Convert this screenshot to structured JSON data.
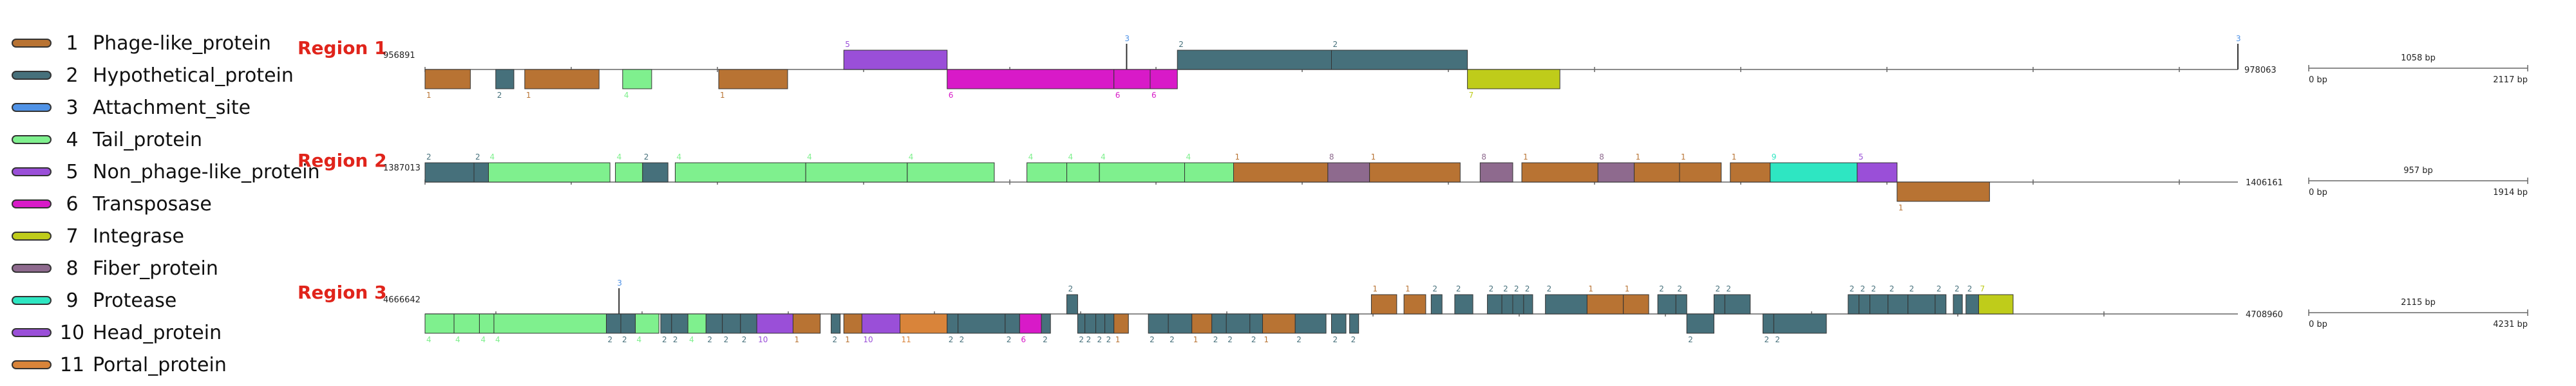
{
  "legend": [
    {
      "num": "1",
      "label": "Phage-like_protein",
      "color": "#B87333"
    },
    {
      "num": "2",
      "label": "Hypothetical_protein",
      "color": "#46707B"
    },
    {
      "num": "3",
      "label": "Attachment_site",
      "color": "#4F92E6"
    },
    {
      "num": "4",
      "label": "Tail_protein",
      "color": "#7FF08E"
    },
    {
      "num": "5",
      "label": "Non_phage-like_protein",
      "color": "#9A4FD8"
    },
    {
      "num": "6",
      "label": "Transposase",
      "color": "#D81AC8"
    },
    {
      "num": "7",
      "label": "Integrase",
      "color": "#BFCC1A"
    },
    {
      "num": "8",
      "label": "Fiber_protein",
      "color": "#8E6A8E"
    },
    {
      "num": "9",
      "label": "Protease",
      "color": "#2EE6C2"
    },
    {
      "num": "10",
      "label": "Head_protein",
      "color": "#9A4FD8"
    },
    {
      "num": "11",
      "label": "Portal_protein",
      "color": "#D9843A"
    }
  ],
  "colors": {
    "1": "#B87333",
    "2": "#46707B",
    "3": "#4F92E6",
    "4": "#7FF08E",
    "5": "#9A4FD8",
    "6": "#D81AC8",
    "7": "#BFCC1A",
    "8": "#8E6A8E",
    "9": "#2EE6C2",
    "10": "#9A4FD8",
    "11": "#D9843A"
  },
  "regions": [
    {
      "name": "Region 1",
      "start": "956891",
      "end": "978063",
      "scale": {
        "length": "1058 bp",
        "left": "0 bp",
        "right": "2117 bp"
      },
      "att_markers": [
        0.387,
        1.0
      ],
      "genes": [
        {
          "s": 0.0,
          "e": 0.025,
          "t": "1",
          "strand": "-"
        },
        {
          "s": 0.039,
          "e": 0.049,
          "t": "2",
          "strand": "-"
        },
        {
          "s": 0.055,
          "e": 0.096,
          "t": "1",
          "strand": "-"
        },
        {
          "s": 0.109,
          "e": 0.125,
          "t": "4",
          "strand": "-"
        },
        {
          "s": 0.162,
          "e": 0.2,
          "t": "1",
          "strand": "-"
        },
        {
          "s": 0.231,
          "e": 0.288,
          "t": "5",
          "strand": "+"
        },
        {
          "s": 0.288,
          "e": 0.38,
          "t": "6",
          "strand": "-"
        },
        {
          "s": 0.38,
          "e": 0.4,
          "t": "6",
          "strand": "-"
        },
        {
          "s": 0.4,
          "e": 0.415,
          "t": "6",
          "strand": "-"
        },
        {
          "s": 0.415,
          "e": 0.5,
          "t": "2",
          "strand": "+"
        },
        {
          "s": 0.5,
          "e": 0.575,
          "t": "2",
          "strand": "+"
        },
        {
          "s": 0.575,
          "e": 0.626,
          "t": "7",
          "strand": "-"
        }
      ]
    },
    {
      "name": "Region 2",
      "start": "1387013",
      "end": "1406161",
      "scale": {
        "length": "957 bp",
        "left": "0 bp",
        "right": "1914 bp"
      },
      "att_markers": [],
      "genes": [
        {
          "s": 0.0,
          "e": 0.027,
          "t": "2",
          "strand": "+"
        },
        {
          "s": 0.027,
          "e": 0.035,
          "t": "2",
          "strand": "+"
        },
        {
          "s": 0.035,
          "e": 0.102,
          "t": "4",
          "strand": "+"
        },
        {
          "s": 0.105,
          "e": 0.12,
          "t": "4",
          "strand": "+"
        },
        {
          "s": 0.12,
          "e": 0.134,
          "t": "2",
          "strand": "+"
        },
        {
          "s": 0.138,
          "e": 0.21,
          "t": "4",
          "strand": "+"
        },
        {
          "s": 0.21,
          "e": 0.266,
          "t": "4",
          "strand": "+"
        },
        {
          "s": 0.266,
          "e": 0.314,
          "t": "4",
          "strand": "+"
        },
        {
          "s": 0.332,
          "e": 0.354,
          "t": "4",
          "strand": "+"
        },
        {
          "s": 0.354,
          "e": 0.372,
          "t": "4",
          "strand": "+"
        },
        {
          "s": 0.372,
          "e": 0.419,
          "t": "4",
          "strand": "+"
        },
        {
          "s": 0.419,
          "e": 0.446,
          "t": "4",
          "strand": "+"
        },
        {
          "s": 0.446,
          "e": 0.498,
          "t": "1",
          "strand": "+"
        },
        {
          "s": 0.498,
          "e": 0.521,
          "t": "8",
          "strand": "+"
        },
        {
          "s": 0.521,
          "e": 0.571,
          "t": "1",
          "strand": "+"
        },
        {
          "s": 0.582,
          "e": 0.6,
          "t": "8",
          "strand": "+"
        },
        {
          "s": 0.605,
          "e": 0.647,
          "t": "1",
          "strand": "+"
        },
        {
          "s": 0.647,
          "e": 0.667,
          "t": "8",
          "strand": "+"
        },
        {
          "s": 0.667,
          "e": 0.692,
          "t": "1",
          "strand": "+"
        },
        {
          "s": 0.692,
          "e": 0.715,
          "t": "1",
          "strand": "+"
        },
        {
          "s": 0.72,
          "e": 0.742,
          "t": "1",
          "strand": "+"
        },
        {
          "s": 0.742,
          "e": 0.79,
          "t": "9",
          "strand": "+"
        },
        {
          "s": 0.79,
          "e": 0.812,
          "t": "5",
          "strand": "+"
        },
        {
          "s": 0.812,
          "e": 0.863,
          "t": "1",
          "strand": "-"
        }
      ]
    },
    {
      "name": "Region 3",
      "start": "4666642",
      "end": "4708960",
      "scale": {
        "length": "2115 bp",
        "left": "0 bp",
        "right": "4231 bp"
      },
      "att_markers": [
        0.107
      ],
      "genes": [
        {
          "s": 0.0,
          "e": 0.016,
          "t": "4",
          "strand": "-"
        },
        {
          "s": 0.016,
          "e": 0.03,
          "t": "4",
          "strand": "-"
        },
        {
          "s": 0.03,
          "e": 0.038,
          "t": "4",
          "strand": "-"
        },
        {
          "s": 0.038,
          "e": 0.1,
          "t": "4",
          "strand": "-"
        },
        {
          "s": 0.1,
          "e": 0.108,
          "t": "2",
          "strand": "-"
        },
        {
          "s": 0.108,
          "e": 0.116,
          "t": "2",
          "strand": "-"
        },
        {
          "s": 0.116,
          "e": 0.129,
          "t": "4",
          "strand": "-"
        },
        {
          "s": 0.13,
          "e": 0.136,
          "t": "2",
          "strand": "-"
        },
        {
          "s": 0.136,
          "e": 0.145,
          "t": "2",
          "strand": "-"
        },
        {
          "s": 0.145,
          "e": 0.155,
          "t": "4",
          "strand": "-"
        },
        {
          "s": 0.155,
          "e": 0.164,
          "t": "2",
          "strand": "-"
        },
        {
          "s": 0.164,
          "e": 0.174,
          "t": "2",
          "strand": "-"
        },
        {
          "s": 0.174,
          "e": 0.183,
          "t": "2",
          "strand": "-"
        },
        {
          "s": 0.183,
          "e": 0.203,
          "t": "10",
          "strand": "-"
        },
        {
          "s": 0.203,
          "e": 0.218,
          "t": "1",
          "strand": "-"
        },
        {
          "s": 0.224,
          "e": 0.229,
          "t": "2",
          "strand": "-"
        },
        {
          "s": 0.231,
          "e": 0.241,
          "t": "1",
          "strand": "-"
        },
        {
          "s": 0.241,
          "e": 0.262,
          "t": "10",
          "strand": "-"
        },
        {
          "s": 0.262,
          "e": 0.288,
          "t": "11",
          "strand": "-"
        },
        {
          "s": 0.288,
          "e": 0.294,
          "t": "2",
          "strand": "-"
        },
        {
          "s": 0.294,
          "e": 0.32,
          "t": "2",
          "strand": "-"
        },
        {
          "s": 0.32,
          "e": 0.328,
          "t": "2",
          "strand": "-"
        },
        {
          "s": 0.328,
          "e": 0.34,
          "t": "6",
          "strand": "-"
        },
        {
          "s": 0.34,
          "e": 0.345,
          "t": "2",
          "strand": "-"
        },
        {
          "s": 0.354,
          "e": 0.36,
          "t": "2",
          "strand": "+"
        },
        {
          "s": 0.36,
          "e": 0.364,
          "t": "2",
          "strand": "-"
        },
        {
          "s": 0.364,
          "e": 0.37,
          "t": "2",
          "strand": "-"
        },
        {
          "s": 0.37,
          "e": 0.375,
          "t": "2",
          "strand": "-"
        },
        {
          "s": 0.375,
          "e": 0.38,
          "t": "2",
          "strand": "-"
        },
        {
          "s": 0.38,
          "e": 0.388,
          "t": "1",
          "strand": "-"
        },
        {
          "s": 0.399,
          "e": 0.41,
          "t": "2",
          "strand": "-"
        },
        {
          "s": 0.41,
          "e": 0.423,
          "t": "2",
          "strand": "-"
        },
        {
          "s": 0.423,
          "e": 0.434,
          "t": "1",
          "strand": "-"
        },
        {
          "s": 0.434,
          "e": 0.442,
          "t": "2",
          "strand": "-"
        },
        {
          "s": 0.442,
          "e": 0.455,
          "t": "2",
          "strand": "-"
        },
        {
          "s": 0.455,
          "e": 0.462,
          "t": "2",
          "strand": "-"
        },
        {
          "s": 0.462,
          "e": 0.48,
          "t": "1",
          "strand": "-"
        },
        {
          "s": 0.48,
          "e": 0.497,
          "t": "2",
          "strand": "-"
        },
        {
          "s": 0.5,
          "e": 0.508,
          "t": "2",
          "strand": "-"
        },
        {
          "s": 0.51,
          "e": 0.515,
          "t": "2",
          "strand": "-"
        },
        {
          "s": 0.522,
          "e": 0.536,
          "t": "1",
          "strand": "+"
        },
        {
          "s": 0.54,
          "e": 0.552,
          "t": "1",
          "strand": "+"
        },
        {
          "s": 0.555,
          "e": 0.561,
          "t": "2",
          "strand": "+"
        },
        {
          "s": 0.568,
          "e": 0.578,
          "t": "2",
          "strand": "+"
        },
        {
          "s": 0.586,
          "e": 0.594,
          "t": "2",
          "strand": "+"
        },
        {
          "s": 0.594,
          "e": 0.6,
          "t": "2",
          "strand": "+"
        },
        {
          "s": 0.6,
          "e": 0.606,
          "t": "2",
          "strand": "+"
        },
        {
          "s": 0.606,
          "e": 0.611,
          "t": "2",
          "strand": "+"
        },
        {
          "s": 0.618,
          "e": 0.641,
          "t": "2",
          "strand": "+"
        },
        {
          "s": 0.641,
          "e": 0.661,
          "t": "1",
          "strand": "+"
        },
        {
          "s": 0.661,
          "e": 0.675,
          "t": "1",
          "strand": "+"
        },
        {
          "s": 0.68,
          "e": 0.69,
          "t": "2",
          "strand": "+"
        },
        {
          "s": 0.69,
          "e": 0.696,
          "t": "2",
          "strand": "+"
        },
        {
          "s": 0.696,
          "e": 0.711,
          "t": "2",
          "strand": "-"
        },
        {
          "s": 0.711,
          "e": 0.717,
          "t": "2",
          "strand": "+"
        },
        {
          "s": 0.717,
          "e": 0.731,
          "t": "2",
          "strand": "+"
        },
        {
          "s": 0.738,
          "e": 0.744,
          "t": "2",
          "strand": "-"
        },
        {
          "s": 0.744,
          "e": 0.773,
          "t": "2",
          "strand": "-"
        },
        {
          "s": 0.785,
          "e": 0.791,
          "t": "2",
          "strand": "+"
        },
        {
          "s": 0.791,
          "e": 0.797,
          "t": "2",
          "strand": "+"
        },
        {
          "s": 0.797,
          "e": 0.807,
          "t": "2",
          "strand": "+"
        },
        {
          "s": 0.807,
          "e": 0.818,
          "t": "2",
          "strand": "+"
        },
        {
          "s": 0.818,
          "e": 0.833,
          "t": "2",
          "strand": "+"
        },
        {
          "s": 0.833,
          "e": 0.839,
          "t": "2",
          "strand": "+"
        },
        {
          "s": 0.843,
          "e": 0.848,
          "t": "2",
          "strand": "+"
        },
        {
          "s": 0.85,
          "e": 0.857,
          "t": "2",
          "strand": "+"
        },
        {
          "s": 0.857,
          "e": 0.876,
          "t": "7",
          "strand": "+"
        }
      ]
    }
  ]
}
